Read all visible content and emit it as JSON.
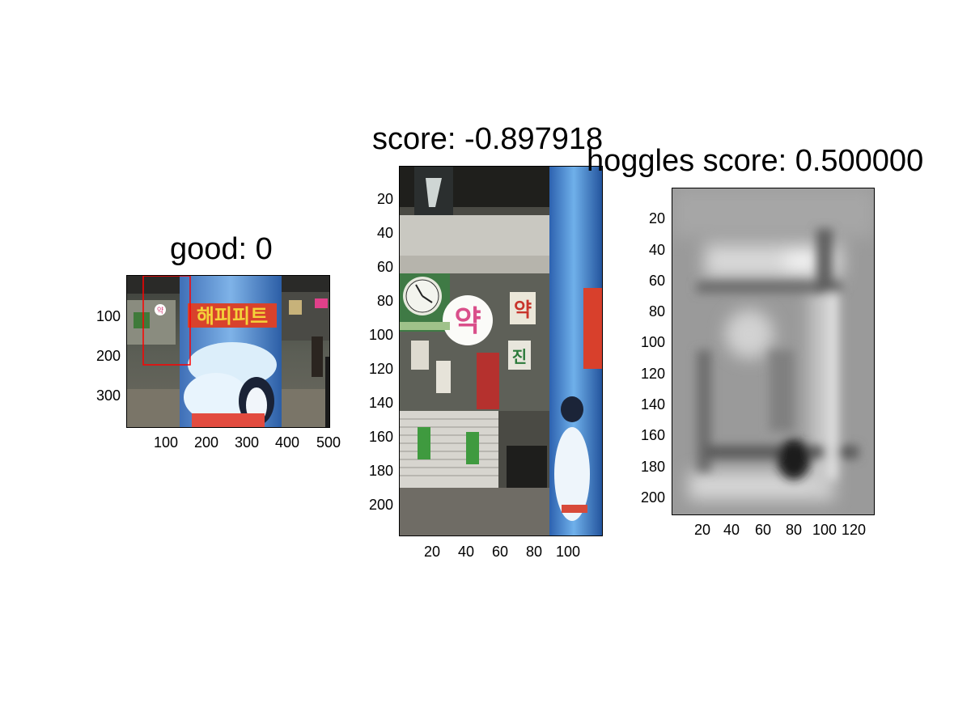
{
  "panels": [
    {
      "title": "good: 0",
      "x_ticks": [
        "100",
        "200",
        "300",
        "400",
        "500"
      ],
      "y_ticks": [
        "100",
        "200",
        "300"
      ],
      "image": "subway-poster-photo"
    },
    {
      "title": "score: -0.897918",
      "x_ticks": [
        "20",
        "40",
        "60",
        "80",
        "100"
      ],
      "y_ticks": [
        "20",
        "40",
        "60",
        "80",
        "100",
        "120",
        "140",
        "160",
        "180",
        "200"
      ],
      "image": "pharmacy-crop-photo"
    },
    {
      "title": "hoggles score: 0.500000",
      "x_ticks": [
        "20",
        "40",
        "60",
        "80",
        "100",
        "120"
      ],
      "y_ticks": [
        "20",
        "40",
        "60",
        "80",
        "100",
        "120",
        "140",
        "160",
        "180",
        "200"
      ],
      "image": "hoggles-grayscale-visualization"
    }
  ],
  "photo_text": {
    "sign_char": "약",
    "poster_title": "해피피트",
    "shop_char1": "약",
    "shop_char2": "진"
  },
  "colors": {
    "detection_box": "#ff0000"
  }
}
